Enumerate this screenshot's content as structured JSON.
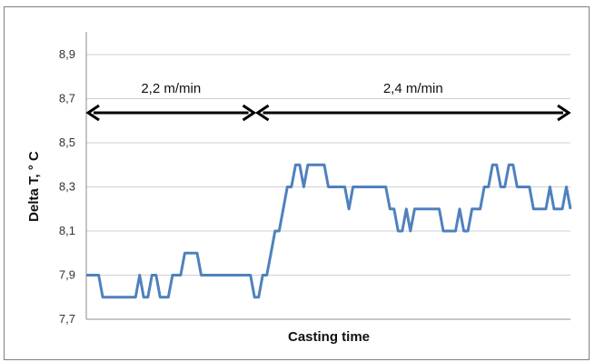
{
  "chart_data": {
    "type": "line",
    "title": "",
    "xlabel": "Casting time",
    "ylabel": "Delta T, ° C",
    "ylim": [
      7.7,
      8.9
    ],
    "yticks": [
      "7,7",
      "7,9",
      "8,1",
      "8,3",
      "8,5",
      "8,7",
      "8,9"
    ],
    "ytick_values": [
      7.7,
      7.9,
      8.1,
      8.3,
      8.5,
      8.7,
      8.9
    ],
    "grid": "horizontal",
    "legend": "none",
    "series_color": "#4f81bd",
    "series": [
      {
        "values": [
          7.9,
          7.9,
          7.9,
          7.9,
          7.8,
          7.8,
          7.8,
          7.8,
          7.8,
          7.8,
          7.8,
          7.8,
          7.8,
          7.9,
          7.8,
          7.8,
          7.9,
          7.9,
          7.8,
          7.8,
          7.8,
          7.9,
          7.9,
          7.9,
          8.0,
          8.0,
          8.0,
          8.0,
          7.9,
          7.9,
          7.9,
          7.9,
          7.9,
          7.9,
          7.9,
          7.9,
          7.9,
          7.9,
          7.9,
          7.9,
          7.9,
          7.8,
          7.8,
          7.9,
          7.9,
          8.0,
          8.1,
          8.1,
          8.2,
          8.3,
          8.3,
          8.4,
          8.4,
          8.3,
          8.4,
          8.4,
          8.4,
          8.4,
          8.4,
          8.3,
          8.3,
          8.3,
          8.3,
          8.3,
          8.2,
          8.3,
          8.3,
          8.3,
          8.3,
          8.3,
          8.3,
          8.3,
          8.3,
          8.3,
          8.2,
          8.2,
          8.1,
          8.1,
          8.2,
          8.1,
          8.2,
          8.2,
          8.2,
          8.2,
          8.2,
          8.2,
          8.2,
          8.1,
          8.1,
          8.1,
          8.1,
          8.2,
          8.1,
          8.1,
          8.2,
          8.2,
          8.2,
          8.3,
          8.3,
          8.4,
          8.4,
          8.3,
          8.3,
          8.4,
          8.4,
          8.3,
          8.3,
          8.3,
          8.3,
          8.2,
          8.2,
          8.2,
          8.2,
          8.3,
          8.2,
          8.2,
          8.2,
          8.3,
          8.2
        ]
      }
    ],
    "annotations": [
      {
        "label": "2,2 m/min",
        "from_fraction": 0.0,
        "to_fraction": 0.35
      },
      {
        "label": "2,4 m/min",
        "from_fraction": 0.35,
        "to_fraction": 1.0
      }
    ]
  }
}
